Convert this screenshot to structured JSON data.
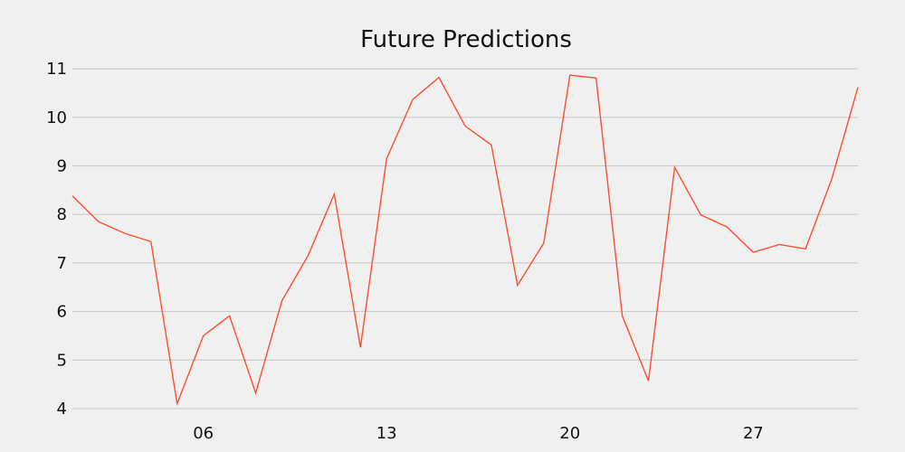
{
  "chart_data": {
    "type": "line",
    "title": "Future Predictions",
    "xlabel": "",
    "ylabel": "",
    "x": [
      1,
      2,
      3,
      4,
      5,
      6,
      7,
      8,
      9,
      10,
      11,
      12,
      13,
      14,
      15,
      16,
      17,
      18,
      19,
      20,
      21,
      22,
      23,
      24,
      25,
      26,
      27,
      28,
      29,
      30,
      31
    ],
    "series": [
      {
        "values": [
          8.38,
          7.85,
          7.61,
          7.44,
          4.1,
          5.5,
          5.91,
          4.32,
          6.22,
          7.15,
          8.42,
          5.26,
          9.15,
          10.37,
          10.82,
          9.82,
          9.43,
          6.54,
          7.41,
          10.87,
          10.81,
          5.91,
          4.57,
          8.97,
          7.99,
          7.74,
          7.22,
          7.38,
          7.29,
          8.73,
          10.62
        ]
      }
    ],
    "xticks": [
      6,
      13,
      20,
      27
    ],
    "xtick_labels": [
      "06",
      "13",
      "20",
      "27"
    ],
    "yticks": [
      4,
      5,
      6,
      7,
      8,
      9,
      10,
      11
    ],
    "xlim": [
      1,
      31
    ],
    "ylim": [
      3.85,
      11.3
    ],
    "grid": "horizontal",
    "line_color": "#fc4f30",
    "background_color": "#f0f0f0",
    "grid_color": "#cbcbcb"
  }
}
